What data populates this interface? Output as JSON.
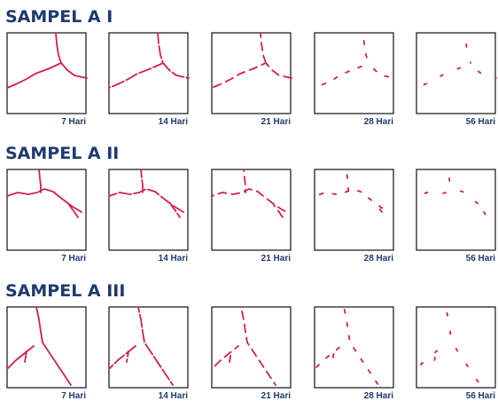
{
  "rows": [
    {
      "title": "SAMPEL A I",
      "panels": [
        "7 Hari",
        "14 Hari",
        "21 Hari",
        "28 Hari",
        "56 Hari"
      ]
    },
    {
      "title": "SAMPEL A II",
      "panels": [
        "7 Hari",
        "14 Hari",
        "21 Hari",
        "28 Hari",
        "56 Hari"
      ]
    },
    {
      "title": "SAMPEL A III",
      "panels": [
        "7 Hari",
        "14 Hari",
        "21 Hari",
        "28 Hari",
        "56 Hari"
      ]
    }
  ]
}
